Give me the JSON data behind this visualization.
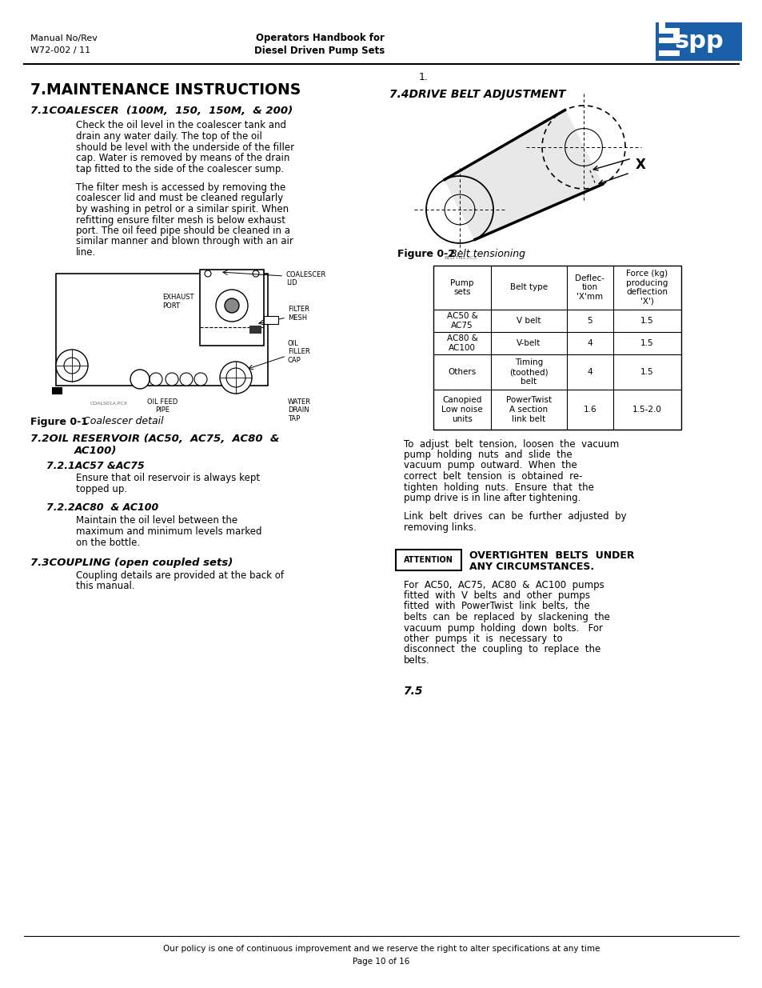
{
  "page_width": 9.54,
  "page_height": 12.35,
  "bg_color": "#ffffff",
  "logo_color": "#1a5fa8",
  "header_manual_no": "Manual No/Rev",
  "header_manual_val": "W72-002 / 11",
  "header_title1": "Operators Handbook for",
  "header_title2": "Diesel Driven Pump Sets",
  "footer_line1": "Our policy is one of continuous improvement and we reserve the right to alter specifications at any time",
  "footer_line2": "Page 10 of 16",
  "chapter_title": "7.MAINTENANCE INSTRUCTIONS",
  "section_71_title": "7.1COALESCER  (100M,  150,  150M,  & 200)",
  "para1_lines": [
    "Check the oil level in the coalescer tank and",
    "drain any water daily. The top of the oil",
    "should be level with the underside of the filler",
    "cap. Water is removed by means of the drain",
    "tap fitted to the side of the coalescer sump."
  ],
  "para2_lines": [
    "The filter mesh is accessed by removing the",
    "coalescer lid and must be cleaned regularly",
    "by washing in petrol or a similar spirit. When",
    "refitting ensure filter mesh is below exhaust",
    "port. The oil feed pipe should be cleaned in a",
    "similar manner and blown through with an air",
    "line."
  ],
  "fig1_caption_bold": "Figure 0-1",
  "fig1_caption_italic": " Coalescer detail",
  "section_72_line1": "7.2OIL RESERVOIR (AC50,  AC75,  AC80  &",
  "section_72_line2": "AC100)",
  "section_721_title": "7.2.1AC57 &AC75",
  "section_721_text": [
    "Ensure that oil reservoir is always kept",
    "topped up."
  ],
  "section_722_title": "7.2.2AC80  & AC100",
  "section_722_text": [
    "Maintain the oil level between the",
    "maximum and minimum levels marked",
    "on the bottle."
  ],
  "section_73_title": "7.3COUPLING (open coupled sets)",
  "section_73_text": [
    "Coupling details are provided at the back of",
    "this manual."
  ],
  "right_col_num": "1.",
  "section_74_title": "7.4DRIVE BELT ADJUSTMENT",
  "fig2_caption_bold": "Figure 0-2",
  "fig2_caption_italic": " Belt tensioning",
  "table_headers": [
    "Pump\nsets",
    "Belt type",
    "Deflec-\ntion\n'X'mm",
    "Force (kg)\nproducing\ndeflection\n'X')"
  ],
  "table_rows": [
    [
      "AC50 &\nAC75",
      "V belt",
      "5",
      "1.5"
    ],
    [
      "AC80 &\nAC100",
      "V-belt",
      "4",
      "1.5"
    ],
    [
      "Others",
      "Timing\n(toothed)\nbelt",
      "4",
      "1.5"
    ],
    [
      "Canopied\nLow noise\nunits",
      "PowerTwist\nA section\nlink belt",
      "1.6",
      "1.5-2.0"
    ]
  ],
  "belt_para1": [
    "To  adjust  belt  tension,  loosen  the  vacuum",
    "pump  holding  nuts  and  slide  the",
    "vacuum  pump  outward.  When  the",
    "correct  belt  tension  is  obtained  re-",
    "tighten  holding  nuts.  Ensure  that  the",
    "pump drive is in line after tightening."
  ],
  "belt_para2": [
    "Link  belt  drives  can  be  further  adjusted  by",
    "removing links."
  ],
  "attention_label": "ATTENTION",
  "attention_text1": "OVERTIGHTEN  BELTS  UNDER",
  "attention_text2": "ANY CIRCUMSTANCES.",
  "belt_para3": [
    "For  AC50,  AC75,  AC80  &  AC100  pumps",
    "fitted  with  V  belts  and  other  pumps",
    "fitted  with  PowerTwist  link  belts,  the",
    "belts  can  be  replaced  by  slackening  the",
    "vacuum  pump  holding  down  bolts.   For",
    "other  pumps  it  is  necessary  to",
    "disconnect  the  coupling  to  replace  the",
    "belts."
  ],
  "page_num_bottom": "7.5"
}
